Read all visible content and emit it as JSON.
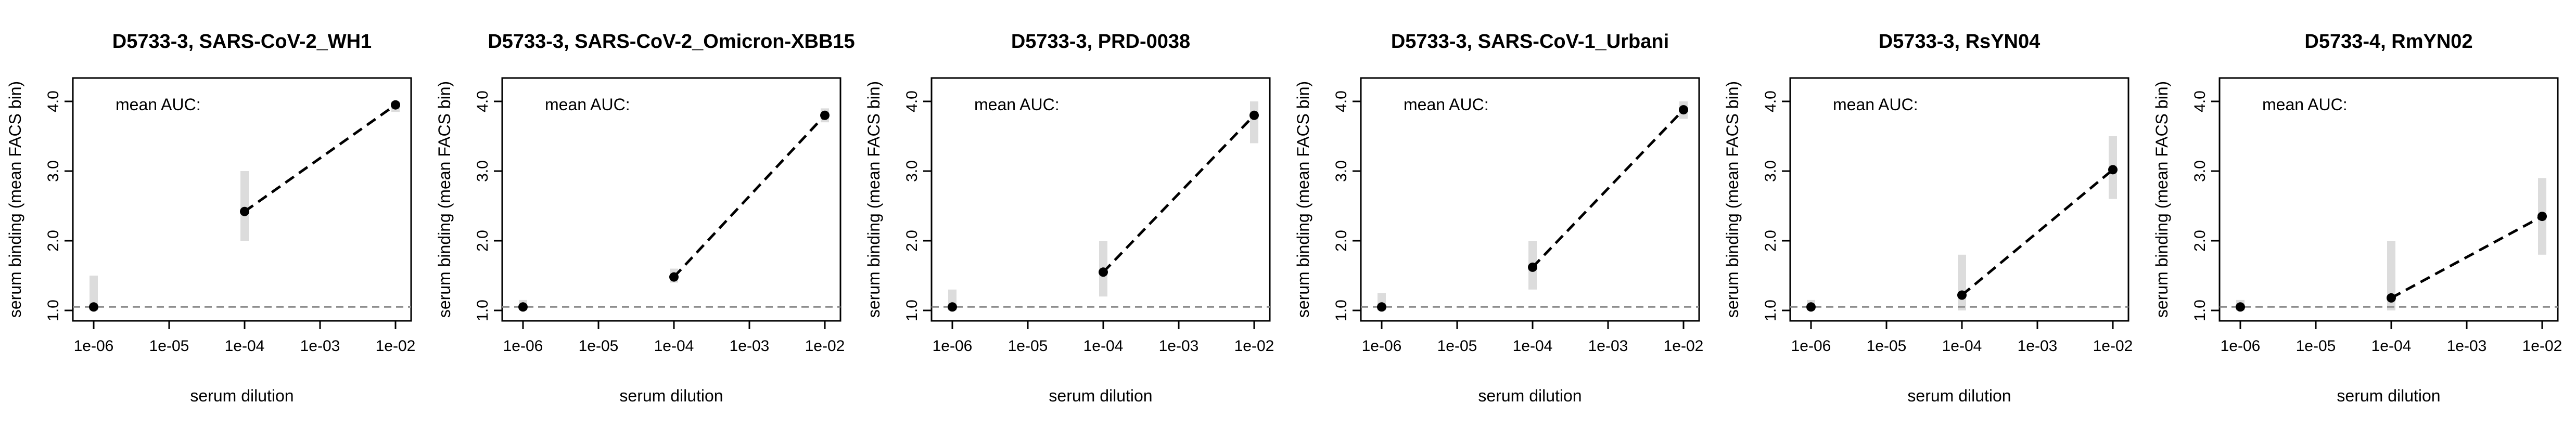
{
  "chart_data": [
    {
      "type": "scatter",
      "title": "D5733-3, SARS-CoV-2_WH1",
      "xlabel": "serum dilution",
      "ylabel": "serum binding (mean FACS bin)",
      "annotation": "mean AUC:",
      "x_scale": "log",
      "xlim": [
        1e-06,
        0.01
      ],
      "ylim": [
        1.0,
        4.0
      ],
      "x_ticks": [
        "1e-06",
        "1e-05",
        "1e-04",
        "1e-03",
        "1e-02"
      ],
      "y_ticks": [
        "1.0",
        "2.0",
        "3.0",
        "4.0"
      ],
      "baseline": 1.05,
      "points": [
        {
          "x": 1e-06,
          "y": 1.05
        },
        {
          "x": 0.0001,
          "y": 2.42
        },
        {
          "x": 0.01,
          "y": 3.95
        }
      ],
      "spread": [
        {
          "x": 1e-06,
          "lo": 1.0,
          "hi": 1.5
        },
        {
          "x": 0.0001,
          "lo": 2.0,
          "hi": 3.0
        },
        {
          "x": 0.01,
          "lo": 3.85,
          "hi": 4.0
        }
      ]
    },
    {
      "type": "scatter",
      "title": "D5733-3, SARS-CoV-2_Omicron-XBB15",
      "xlabel": "serum dilution",
      "ylabel": "serum binding (mean FACS bin)",
      "annotation": "mean AUC:",
      "x_scale": "log",
      "xlim": [
        1e-06,
        0.01
      ],
      "ylim": [
        1.0,
        4.0
      ],
      "x_ticks": [
        "1e-06",
        "1e-05",
        "1e-04",
        "1e-03",
        "1e-02"
      ],
      "y_ticks": [
        "1.0",
        "2.0",
        "3.0",
        "4.0"
      ],
      "baseline": 1.05,
      "points": [
        {
          "x": 1e-06,
          "y": 1.05
        },
        {
          "x": 0.0001,
          "y": 1.48
        },
        {
          "x": 0.01,
          "y": 3.8
        }
      ],
      "spread": [
        {
          "x": 1e-06,
          "lo": 1.0,
          "hi": 1.15
        },
        {
          "x": 0.0001,
          "lo": 1.4,
          "hi": 1.6
        },
        {
          "x": 0.01,
          "lo": 3.7,
          "hi": 3.9
        }
      ]
    },
    {
      "type": "scatter",
      "title": "D5733-3, PRD-0038",
      "xlabel": "serum dilution",
      "ylabel": "serum binding (mean FACS bin)",
      "annotation": "mean AUC:",
      "x_scale": "log",
      "xlim": [
        1e-06,
        0.01
      ],
      "ylim": [
        1.0,
        4.0
      ],
      "x_ticks": [
        "1e-06",
        "1e-05",
        "1e-04",
        "1e-03",
        "1e-02"
      ],
      "y_ticks": [
        "1.0",
        "2.0",
        "3.0",
        "4.0"
      ],
      "baseline": 1.05,
      "points": [
        {
          "x": 1e-06,
          "y": 1.05
        },
        {
          "x": 0.0001,
          "y": 1.55
        },
        {
          "x": 0.01,
          "y": 3.8
        }
      ],
      "spread": [
        {
          "x": 1e-06,
          "lo": 1.0,
          "hi": 1.3
        },
        {
          "x": 0.0001,
          "lo": 1.2,
          "hi": 2.0
        },
        {
          "x": 0.01,
          "lo": 3.4,
          "hi": 4.0
        }
      ]
    },
    {
      "type": "scatter",
      "title": "D5733-3, SARS-CoV-1_Urbani",
      "xlabel": "serum dilution",
      "ylabel": "serum binding (mean FACS bin)",
      "annotation": "mean AUC:",
      "x_scale": "log",
      "xlim": [
        1e-06,
        0.01
      ],
      "ylim": [
        1.0,
        4.0
      ],
      "x_ticks": [
        "1e-06",
        "1e-05",
        "1e-04",
        "1e-03",
        "1e-02"
      ],
      "y_ticks": [
        "1.0",
        "2.0",
        "3.0",
        "4.0"
      ],
      "baseline": 1.05,
      "points": [
        {
          "x": 1e-06,
          "y": 1.05
        },
        {
          "x": 0.0001,
          "y": 1.62
        },
        {
          "x": 0.01,
          "y": 3.88
        }
      ],
      "spread": [
        {
          "x": 1e-06,
          "lo": 1.0,
          "hi": 1.25
        },
        {
          "x": 0.0001,
          "lo": 1.3,
          "hi": 2.0
        },
        {
          "x": 0.01,
          "lo": 3.75,
          "hi": 4.0
        }
      ]
    },
    {
      "type": "scatter",
      "title": "D5733-3, RsYN04",
      "xlabel": "serum dilution",
      "ylabel": "serum binding (mean FACS bin)",
      "annotation": "mean AUC:",
      "x_scale": "log",
      "xlim": [
        1e-06,
        0.01
      ],
      "ylim": [
        1.0,
        4.0
      ],
      "x_ticks": [
        "1e-06",
        "1e-05",
        "1e-04",
        "1e-03",
        "1e-02"
      ],
      "y_ticks": [
        "1.0",
        "2.0",
        "3.0",
        "4.0"
      ],
      "baseline": 1.05,
      "points": [
        {
          "x": 1e-06,
          "y": 1.05
        },
        {
          "x": 0.0001,
          "y": 1.22
        },
        {
          "x": 0.01,
          "y": 3.02
        }
      ],
      "spread": [
        {
          "x": 1e-06,
          "lo": 1.0,
          "hi": 1.15
        },
        {
          "x": 0.0001,
          "lo": 1.0,
          "hi": 1.8
        },
        {
          "x": 0.01,
          "lo": 2.6,
          "hi": 3.5
        }
      ]
    },
    {
      "type": "scatter",
      "title": "D5733-4, RmYN02",
      "xlabel": "serum dilution",
      "ylabel": "serum binding (mean FACS bin)",
      "annotation": "mean AUC:",
      "x_scale": "log",
      "xlim": [
        1e-06,
        0.01
      ],
      "ylim": [
        1.0,
        4.0
      ],
      "x_ticks": [
        "1e-06",
        "1e-05",
        "1e-04",
        "1e-03",
        "1e-02"
      ],
      "y_ticks": [
        "1.0",
        "2.0",
        "3.0",
        "4.0"
      ],
      "baseline": 1.05,
      "points": [
        {
          "x": 1e-06,
          "y": 1.05
        },
        {
          "x": 0.0001,
          "y": 1.18
        },
        {
          "x": 0.01,
          "y": 2.35
        }
      ],
      "spread": [
        {
          "x": 1e-06,
          "lo": 1.0,
          "hi": 1.15
        },
        {
          "x": 0.0001,
          "lo": 1.0,
          "hi": 2.0
        },
        {
          "x": 0.01,
          "lo": 1.8,
          "hi": 2.9
        }
      ]
    }
  ]
}
